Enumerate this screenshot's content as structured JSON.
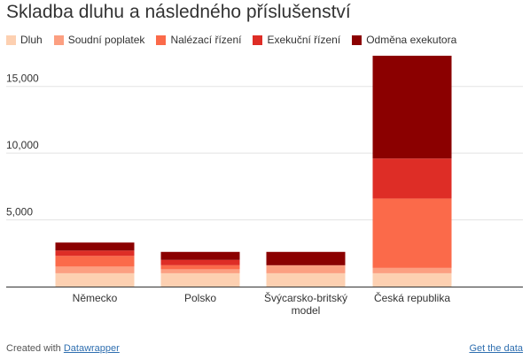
{
  "chart_data": {
    "type": "bar",
    "stacked": true,
    "title": "Skladba dluhu a následného příslušenství",
    "categories": [
      "Německo",
      "Polsko",
      "Švýcarsko-britský model",
      "Česká republika"
    ],
    "category_lines": [
      [
        "Německo"
      ],
      [
        "Polsko"
      ],
      [
        "Švýcarsko-britský",
        "model"
      ],
      [
        "Česká republika"
      ]
    ],
    "series": [
      {
        "name": "Dluh",
        "color": "#fdd0b1",
        "values": [
          1000,
          1000,
          1000,
          1000
        ]
      },
      {
        "name": "Soudní poplatek",
        "color": "#fc9f81",
        "values": [
          500,
          300,
          600,
          400
        ]
      },
      {
        "name": "Nalézací řízení",
        "color": "#fb6a4a",
        "values": [
          800,
          300,
          0,
          5200
        ]
      },
      {
        "name": "Exekuční řízení",
        "color": "#de2d26",
        "values": [
          400,
          400,
          0,
          3000
        ]
      },
      {
        "name": "Odměna exekutora",
        "color": "#8b0000",
        "values": [
          600,
          600,
          1000,
          7700
        ]
      }
    ],
    "yticks": [
      "5,000",
      "10,000",
      "15,000"
    ],
    "ytick_values": [
      5000,
      10000,
      15000
    ],
    "ylim": [
      0,
      17500
    ],
    "grid": true,
    "legend_position": "top-left",
    "xlabel": "",
    "ylabel": ""
  },
  "footer": {
    "created_with": "Created with",
    "tool": "Datawrapper",
    "get_data": "Get the data"
  }
}
